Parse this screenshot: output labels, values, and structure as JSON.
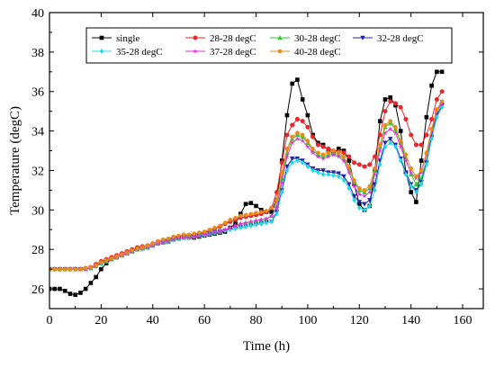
{
  "chart_data": {
    "type": "line",
    "title": "",
    "xlabel": "Time (h)",
    "ylabel": "Temperature (degC)",
    "xlim": [
      0,
      168
    ],
    "ylim": [
      25,
      40
    ],
    "xticks": [
      0,
      20,
      40,
      60,
      80,
      100,
      120,
      140,
      160
    ],
    "yticks": [
      26,
      28,
      30,
      32,
      34,
      36,
      38,
      40
    ],
    "legend_position": "top-right",
    "grid": false,
    "x_step": 2,
    "series": [
      {
        "name": "single",
        "color": "#000000",
        "marker": "square",
        "values": [
          26.0,
          26.0,
          26.0,
          25.9,
          25.75,
          25.7,
          25.8,
          26.0,
          26.3,
          26.6,
          27.0,
          27.3,
          27.5,
          27.6,
          27.7,
          27.8,
          27.9,
          28.0,
          28.05,
          28.1,
          28.2,
          28.3,
          28.35,
          28.4,
          28.5,
          28.55,
          28.6,
          28.6,
          28.6,
          28.65,
          28.7,
          28.75,
          28.8,
          28.85,
          28.9,
          29.1,
          29.3,
          29.8,
          30.3,
          30.35,
          30.2,
          30.0,
          29.9,
          29.9,
          30.5,
          32.5,
          34.8,
          36.4,
          36.6,
          35.6,
          34.8,
          33.8,
          33.4,
          33.3,
          33.0,
          32.9,
          33.1,
          33.0,
          32.5,
          31.3,
          30.3,
          30.0,
          30.2,
          32.0,
          34.5,
          35.6,
          35.7,
          35.3,
          34.0,
          31.9,
          30.9,
          30.4,
          32.5,
          34.7,
          36.3,
          37.0,
          37.0
        ]
      },
      {
        "name": "28-28 degC",
        "color": "#e8262b",
        "marker": "circle",
        "values": [
          27.0,
          27.0,
          27.0,
          27.0,
          27.0,
          27.0,
          27.0,
          27.05,
          27.1,
          27.25,
          27.4,
          27.5,
          27.6,
          27.7,
          27.8,
          27.9,
          28.0,
          28.1,
          28.15,
          28.2,
          28.3,
          28.4,
          28.45,
          28.5,
          28.6,
          28.65,
          28.7,
          28.7,
          28.75,
          28.8,
          28.85,
          28.95,
          29.05,
          29.15,
          29.3,
          29.4,
          29.5,
          29.6,
          29.65,
          29.7,
          29.75,
          29.8,
          29.9,
          30.1,
          30.9,
          32.4,
          33.8,
          34.3,
          34.6,
          34.5,
          34.2,
          33.7,
          33.3,
          33.2,
          33.1,
          33.0,
          32.95,
          32.9,
          32.7,
          32.4,
          32.3,
          32.2,
          32.3,
          32.7,
          33.8,
          35.0,
          35.5,
          35.4,
          35.2,
          34.6,
          33.8,
          33.3,
          33.3,
          33.8,
          34.6,
          35.6,
          36.0
        ]
      },
      {
        "name": "30-28 degC",
        "color": "#23d123",
        "marker": "triangle-up",
        "values": [
          27.0,
          27.0,
          27.0,
          27.0,
          27.0,
          27.0,
          27.0,
          27.0,
          27.05,
          27.15,
          27.3,
          27.4,
          27.5,
          27.6,
          27.7,
          27.8,
          27.9,
          28.0,
          28.05,
          28.1,
          28.2,
          28.3,
          28.35,
          28.4,
          28.5,
          28.55,
          28.6,
          28.6,
          28.65,
          28.7,
          28.75,
          28.8,
          28.85,
          28.9,
          29.0,
          29.1,
          29.2,
          29.3,
          29.35,
          29.4,
          29.45,
          29.5,
          29.55,
          29.7,
          30.2,
          31.6,
          32.9,
          33.6,
          33.8,
          33.7,
          33.4,
          33.0,
          32.8,
          32.7,
          32.8,
          32.9,
          32.8,
          32.6,
          32.1,
          31.4,
          31.0,
          30.9,
          31.1,
          32.0,
          33.2,
          34.2,
          34.4,
          34.1,
          33.4,
          32.6,
          31.8,
          31.3,
          31.6,
          32.5,
          33.8,
          35.0,
          35.5
        ]
      },
      {
        "name": "32-28 degC",
        "color": "#2222aa",
        "marker": "triangle-down",
        "values": [
          27.0,
          27.0,
          27.0,
          27.0,
          27.0,
          27.0,
          27.0,
          27.0,
          27.05,
          27.15,
          27.3,
          27.4,
          27.5,
          27.6,
          27.7,
          27.8,
          27.9,
          28.0,
          28.05,
          28.1,
          28.2,
          28.3,
          28.35,
          28.4,
          28.5,
          28.55,
          28.6,
          28.6,
          28.65,
          28.7,
          28.72,
          28.78,
          28.85,
          28.9,
          28.95,
          29.0,
          29.05,
          29.1,
          29.15,
          29.2,
          29.25,
          29.3,
          29.35,
          29.4,
          29.9,
          31.0,
          32.2,
          32.6,
          32.6,
          32.5,
          32.3,
          32.1,
          32.0,
          32.0,
          31.9,
          31.9,
          31.85,
          31.7,
          31.3,
          30.7,
          30.4,
          30.3,
          30.5,
          31.3,
          32.5,
          33.4,
          33.6,
          33.3,
          32.6,
          31.9,
          31.3,
          31.0,
          31.4,
          32.4,
          33.7,
          34.8,
          35.3
        ]
      },
      {
        "name": "35-28 degC",
        "color": "#1fd8e6",
        "marker": "diamond",
        "values": [
          27.0,
          27.0,
          27.0,
          27.0,
          27.0,
          27.0,
          27.0,
          27.0,
          27.05,
          27.15,
          27.3,
          27.4,
          27.5,
          27.6,
          27.7,
          27.8,
          27.9,
          28.0,
          28.05,
          28.1,
          28.2,
          28.3,
          28.35,
          28.4,
          28.5,
          28.55,
          28.6,
          28.6,
          28.65,
          28.7,
          28.72,
          28.78,
          28.85,
          28.9,
          28.95,
          29.0,
          29.05,
          29.1,
          29.15,
          29.2,
          29.25,
          29.3,
          29.35,
          29.4,
          29.8,
          30.9,
          32.0,
          32.4,
          32.5,
          32.4,
          32.2,
          32.0,
          31.9,
          31.8,
          31.8,
          31.75,
          31.7,
          31.5,
          31.1,
          30.5,
          30.1,
          30.0,
          30.2,
          31.0,
          32.3,
          33.2,
          33.4,
          33.2,
          32.5,
          31.8,
          31.2,
          30.9,
          31.3,
          32.3,
          33.6,
          34.7,
          35.2
        ]
      },
      {
        "name": "37-28 degC",
        "color": "#dd33dd",
        "marker": "star",
        "values": [
          27.0,
          27.0,
          27.0,
          27.0,
          27.0,
          27.0,
          27.0,
          27.0,
          27.05,
          27.15,
          27.3,
          27.4,
          27.5,
          27.6,
          27.7,
          27.8,
          27.9,
          28.0,
          28.05,
          28.1,
          28.2,
          28.3,
          28.35,
          28.4,
          28.5,
          28.55,
          28.6,
          28.6,
          28.65,
          28.7,
          28.75,
          28.8,
          28.85,
          28.9,
          29.0,
          29.1,
          29.2,
          29.3,
          29.35,
          29.4,
          29.45,
          29.5,
          29.55,
          29.7,
          30.1,
          31.4,
          32.7,
          33.4,
          33.6,
          33.5,
          33.2,
          32.9,
          32.7,
          32.6,
          32.7,
          32.8,
          32.7,
          32.5,
          31.9,
          31.2,
          30.8,
          30.7,
          30.9,
          31.8,
          33.0,
          33.9,
          34.1,
          33.9,
          33.2,
          32.5,
          31.9,
          31.6,
          31.9,
          32.8,
          34.0,
          35.0,
          35.4
        ]
      },
      {
        "name": "40-28 degC",
        "color": "#e88a1a",
        "marker": "hexagon",
        "values": [
          27.0,
          27.0,
          27.0,
          27.0,
          27.0,
          27.0,
          27.0,
          27.05,
          27.1,
          27.2,
          27.35,
          27.45,
          27.55,
          27.65,
          27.75,
          27.85,
          27.95,
          28.05,
          28.1,
          28.2,
          28.3,
          28.4,
          28.5,
          28.55,
          28.65,
          28.7,
          28.75,
          28.75,
          28.8,
          28.85,
          28.9,
          29.0,
          29.1,
          29.2,
          29.35,
          29.5,
          29.6,
          29.7,
          29.75,
          29.8,
          29.85,
          29.9,
          29.95,
          30.1,
          30.5,
          31.9,
          33.1,
          33.7,
          33.9,
          33.8,
          33.5,
          33.1,
          32.9,
          32.8,
          32.9,
          33.0,
          32.9,
          32.7,
          32.2,
          31.5,
          31.1,
          31.0,
          31.2,
          32.1,
          33.3,
          34.3,
          34.5,
          34.2,
          33.5,
          32.8,
          32.1,
          31.7,
          32.0,
          32.9,
          34.1,
          35.1,
          35.5
        ]
      }
    ]
  }
}
